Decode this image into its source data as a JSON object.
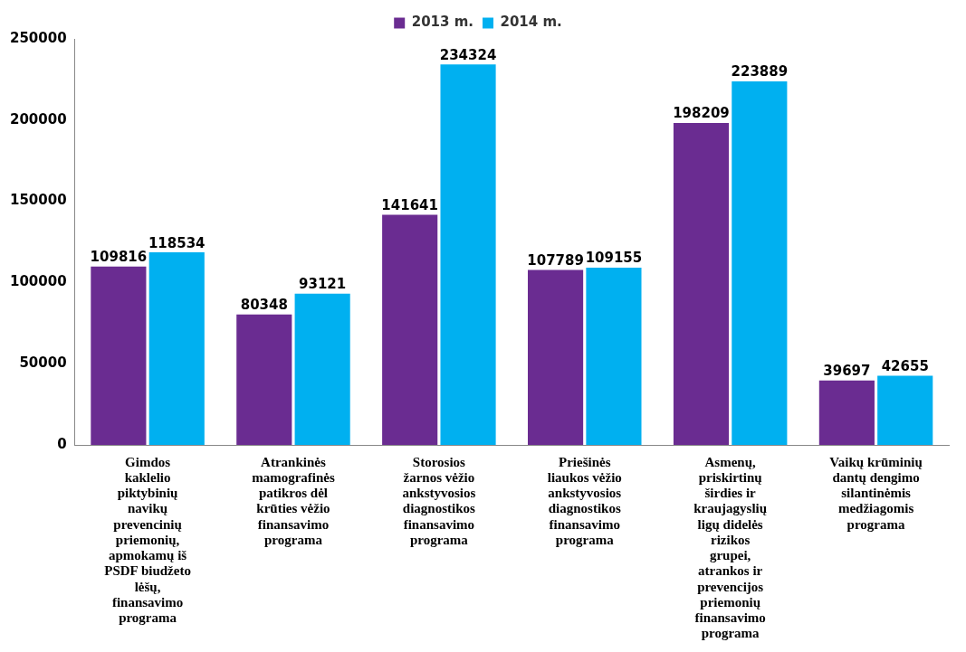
{
  "chart_data": {
    "type": "bar",
    "categories": [
      "Gimdos kaklelio piktybinių navikų prevencinių priemonių, apmokamų iš PSDF biudžeto lėšų, finansavimo programa",
      "Atrankinės mamografinės patikros dėl krūties vėžio finansavimo programa",
      "Storosios žarnos vėžio ankstyvosios diagnostikos finansavimo programa",
      "Priešinės liaukos vėžio ankstyvosios diagnostikos finansavimo programa",
      "Asmenų, priskirtinų širdies ir kraujagyslių ligų didelės rizikos grupei, atrankos ir prevencijos priemonių finansavimo programa",
      "Vaikų krūminių dantų dengimo silantinėmis medžiagomis programa"
    ],
    "series": [
      {
        "name": "2013 m.",
        "color": "#6a2c91",
        "values": [
          109816,
          80348,
          141641,
          107789,
          198209,
          39697
        ]
      },
      {
        "name": "2014 m.",
        "color": "#00b0f0",
        "values": [
          118534,
          93121,
          234324,
          109155,
          223889,
          42655
        ]
      }
    ],
    "ylim": [
      0,
      250000
    ],
    "yticks": [
      0,
      50000,
      100000,
      150000,
      200000,
      250000
    ],
    "data_labels": true,
    "legend": "top",
    "grid": false
  }
}
